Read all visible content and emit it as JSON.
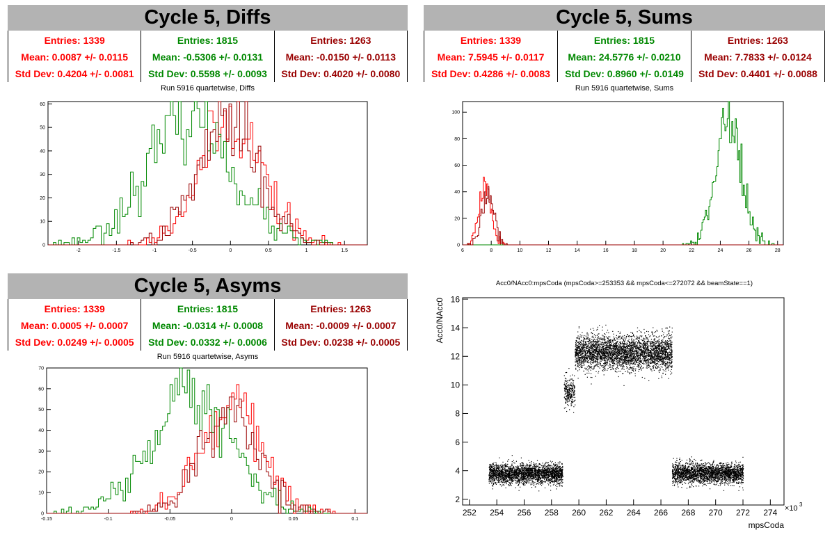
{
  "colors": {
    "s1": "#ff0000",
    "s2": "#008800",
    "s3": "#990000"
  },
  "panels": {
    "diffs": {
      "banner": "Cycle 5, Diffs",
      "stats": [
        {
          "entries": "Entries: 1339",
          "mean": "Mean: 0.0087 +/- 0.0115",
          "std": "Std Dev: 0.4204 +/- 0.0081"
        },
        {
          "entries": "Entries: 1815",
          "mean": "Mean: -0.5306 +/- 0.0131",
          "std": "Std Dev: 0.5598 +/- 0.0093"
        },
        {
          "entries": "Entries: 1263",
          "mean": "Mean: -0.0150 +/- 0.0113",
          "std": "Std Dev: 0.4020 +/- 0.0080"
        }
      ],
      "subtitle": "Run 5916 quartetwise, Diffs"
    },
    "sums": {
      "banner": "Cycle 5, Sums",
      "stats": [
        {
          "entries": "Entries: 1339",
          "mean": "Mean: 7.5945 +/- 0.0117",
          "std": "Std Dev: 0.4286 +/- 0.0083"
        },
        {
          "entries": "Entries: 1815",
          "mean": "Mean: 24.5776 +/- 0.0210",
          "std": "Std Dev: 0.8960 +/- 0.0149"
        },
        {
          "entries": "Entries: 1263",
          "mean": "Mean: 7.7833 +/- 0.0124",
          "std": "Std Dev: 0.4401 +/- 0.0088"
        }
      ],
      "subtitle": "Run 5916 quartetwise, Sums"
    },
    "asyms": {
      "banner": "Cycle 5, Asyms",
      "stats": [
        {
          "entries": "Entries: 1339",
          "mean": "Mean: 0.0005 +/- 0.0007",
          "std": "Std Dev: 0.0249 +/- 0.0005"
        },
        {
          "entries": "Entries: 1815",
          "mean": "Mean: -0.0314 +/- 0.0008",
          "std": "Std Dev: 0.0332 +/- 0.0006"
        },
        {
          "entries": "Entries: 1263",
          "mean": "Mean: -0.0009 +/- 0.0007",
          "std": "Std Dev: 0.0238 +/- 0.0005"
        }
      ],
      "subtitle": "Run 5916 quartetwise, Asyms"
    },
    "scatter": {
      "title": "Acc0/NAcc0:mpsCoda (mpsCoda>=253353 && mpsCoda<=272072 && beamState==1)",
      "xlabel": "mpsCoda",
      "ylabel": "Acc0/NAcc0",
      "exponent": "×10",
      "exponent_power": "3"
    }
  },
  "chart_data": [
    {
      "id": "diffs",
      "type": "histogram",
      "xlim": [
        -2.4,
        1.8
      ],
      "ylim": [
        0,
        61
      ],
      "xticks": [
        -2,
        -1.5,
        -1,
        -0.5,
        0,
        0.5,
        1,
        1.5
      ],
      "xtick_labels": [
        "-2",
        "-1.5",
        "-1",
        "-0.5",
        "0",
        "0.5",
        "1",
        "1.5"
      ],
      "yticks": [
        0,
        10,
        20,
        30,
        40,
        50,
        60
      ],
      "ytick_labels": [
        "0",
        "10",
        "20",
        "30",
        "40",
        "50",
        "60"
      ],
      "bins": 120,
      "series": [
        {
          "color": "s1",
          "mean": 0.0087,
          "std": 0.4204,
          "peak": 52,
          "seed": 11
        },
        {
          "color": "s2",
          "mean": -0.5306,
          "std": 0.5598,
          "peak": 54,
          "seed": 23
        },
        {
          "color": "s3",
          "mean": -0.015,
          "std": 0.402,
          "peak": 53,
          "seed": 37
        }
      ]
    },
    {
      "id": "sums",
      "type": "histogram",
      "xlim": [
        6,
        28.4
      ],
      "ylim": [
        0,
        108
      ],
      "xticks": [
        6,
        8,
        10,
        12,
        14,
        16,
        18,
        20,
        22,
        24,
        26,
        28
      ],
      "xtick_labels": [
        "6",
        "8",
        "10",
        "12",
        "14",
        "16",
        "18",
        "20",
        "22",
        "24",
        "26",
        "28"
      ],
      "yticks": [
        0,
        20,
        40,
        60,
        80,
        100
      ],
      "ytick_labels": [
        "0",
        "20",
        "40",
        "60",
        "80",
        "100"
      ],
      "bins": 280,
      "series": [
        {
          "color": "s1",
          "mean": 7.5945,
          "std": 0.4286,
          "peak": 44,
          "seed": 51
        },
        {
          "color": "s2",
          "mean": 24.5776,
          "std": 0.896,
          "peak": 96,
          "seed": 63
        },
        {
          "color": "s3",
          "mean": 7.7833,
          "std": 0.4401,
          "peak": 38,
          "seed": 77
        }
      ]
    },
    {
      "id": "asyms",
      "type": "histogram",
      "xlim": [
        -0.15,
        0.11
      ],
      "ylim": [
        0,
        70
      ],
      "xticks": [
        -0.15,
        -0.1,
        -0.05,
        0,
        0.05,
        0.1
      ],
      "xtick_labels": [
        "-0.15",
        "-0.1",
        "-0.05",
        "0",
        "0.05",
        "0.1"
      ],
      "yticks": [
        0,
        10,
        20,
        30,
        40,
        50,
        60,
        70
      ],
      "ytick_labels": [
        "0",
        "10",
        "20",
        "30",
        "40",
        "50",
        "60",
        "70"
      ],
      "bins": 130,
      "series": [
        {
          "color": "s1",
          "mean": 0.0005,
          "std": 0.0249,
          "peak": 51,
          "seed": 91
        },
        {
          "color": "s2",
          "mean": -0.0314,
          "std": 0.0332,
          "peak": 58,
          "seed": 103
        },
        {
          "color": "s3",
          "mean": -0.0009,
          "std": 0.0238,
          "peak": 50,
          "seed": 117
        }
      ]
    },
    {
      "id": "scatter",
      "type": "scatter",
      "xlim": [
        251.5,
        275
      ],
      "ylim": [
        1.6,
        16.1
      ],
      "xticks": [
        252,
        254,
        256,
        258,
        260,
        262,
        264,
        266,
        268,
        270,
        272,
        274
      ],
      "xtick_labels": [
        "252",
        "254",
        "256",
        "258",
        "260",
        "262",
        "264",
        "266",
        "268",
        "270",
        "272",
        "274"
      ],
      "yticks": [
        2,
        4,
        6,
        8,
        10,
        12,
        14,
        16
      ],
      "ytick_labels": [
        "2",
        "4",
        "6",
        "8",
        "10",
        "12",
        "14",
        "16"
      ],
      "clusters": [
        {
          "x0": 253.4,
          "x1": 258.8,
          "ymean": 3.8,
          "ysd": 0.35,
          "n": 2600,
          "seed": 201
        },
        {
          "x0": 258.9,
          "x1": 259.7,
          "ymean": 9.6,
          "ysd": 0.55,
          "n": 260,
          "seed": 211
        },
        {
          "x0": 259.7,
          "x1": 266.8,
          "ymean": 12.3,
          "ysd": 0.6,
          "n": 3600,
          "seed": 221
        },
        {
          "x0": 266.8,
          "x1": 272.0,
          "ymean": 3.85,
          "ysd": 0.35,
          "n": 2500,
          "seed": 231
        }
      ]
    }
  ]
}
